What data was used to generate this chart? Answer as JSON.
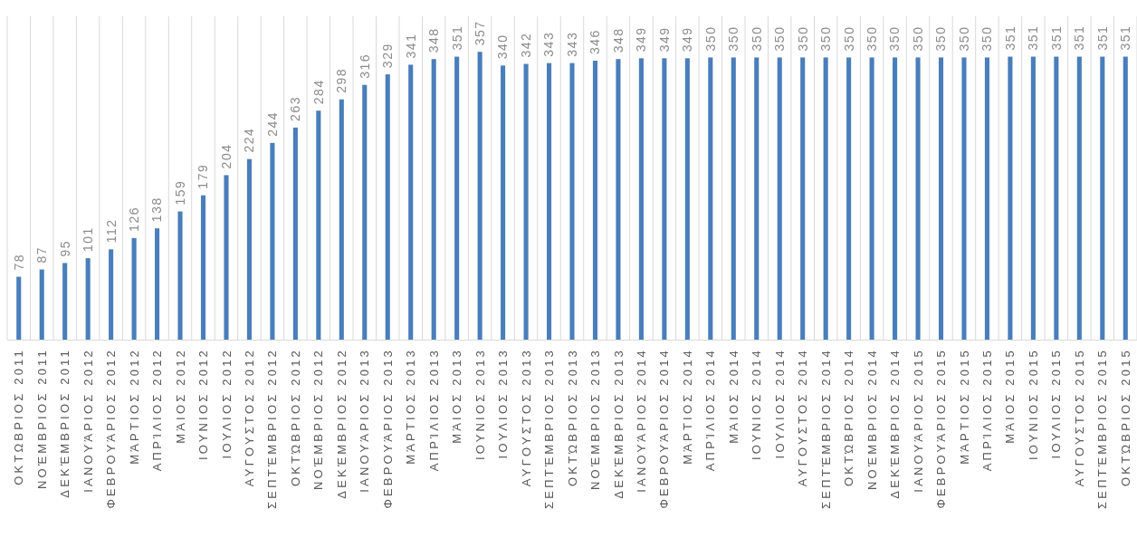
{
  "chart_data": {
    "type": "bar",
    "categories": [
      "ΟΚΤΩΒΡΙΟΣ 2011",
      "ΝΟΈΜΒΡΙΟΣ 2011",
      "ΔΕΚΈΜΒΡΙΟΣ 2011",
      "ΙΑΝΟΥΆΡΙΟΣ 2012",
      "ΦΕΒΡΟΥΆΡΙΟΣ 2012",
      "ΜΆΡΤΙΟΣ 2012",
      "ΑΠΡΊΛΙΟΣ 2012",
      "ΜΆΙΟΣ 2012",
      "ΙΟΥΝΙΟΣ 2012",
      "ΙΟΥΛΙΟΣ 2012",
      "ΑΥΓΟΥΣΤΟΣ 2012",
      "ΣΕΠΤΈΜΒΡΙΟΣ 2012",
      "ΟΚΤΏΒΡΙΟΣ 2012",
      "ΝΟΈΜΒΡΙΟΣ 2012",
      "ΔΕΚΈΜΒΡΙΟΣ 2012",
      "ΙΑΝΟΥΆΡΙΟΣ 2013",
      "ΦΕΒΡΟΥΆΡΙΟΣ 2013",
      "ΜΆΡΤΙΟΣ 2013",
      "ΑΠΡΊΛΙΟΣ 2013",
      "ΜΆΙΟΣ 2013",
      "ΙΟΥΝΙΟΣ 2013",
      "ΙΟΥΛΙΟΣ 2013",
      "ΑΥΓΟΥΣΤΟΣ 2013",
      "ΣΕΠΤΈΜΒΡΙΟΣ 2013",
      "ΟΚΤΏΒΡΙΟΣ 2013",
      "ΝΟΈΜΒΡΙΟΣ 2013",
      "ΔΕΚΈΜΒΡΙΟΣ 2013",
      "ΙΑΝΟΥΆΡΙΟΣ 2014",
      "ΦΕΒΡΟΥΆΡΙΟΣ 2014",
      "ΜΆΡΤΙΟΣ 2014",
      "ΑΠΡΊΛΙΟΣ 2014",
      "ΜΆΙΟΣ 2014",
      "ΙΟΥΝΙΟΣ 2014",
      "ΙΟΥΛΙΟΣ 2014",
      "ΑΥΓΟΥΣΤΟΣ 2014",
      "ΣΕΠΤΈΜΒΡΙΟΣ 2014",
      "ΟΚΤΏΒΡΙΟΣ 2014",
      "ΝΟΈΜΒΡΙΟΣ 2014",
      "ΔΕΚΈΜΒΡΙΟΣ 2014",
      "ΙΑΝΟΥΆΡΙΟΣ 2015",
      "ΦΕΒΡΟΥΆΡΙΟΣ 2015",
      "ΜΆΡΤΙΟΣ 2015",
      "ΑΠΡΊΛΙΟΣ 2015",
      "ΜΆΙΟΣ 2015",
      "ΙΟΥΝΙΟΣ 2015",
      "ΙΟΥΛΙΟΣ 2015",
      "ΑΥΓΟΥΣΤΟΣ 2015",
      "ΣΕΠΤΈΜΒΡΙΟΣ 2015",
      "ΟΚΤΏΒΡΙΟΣ 2015"
    ],
    "values": [
      78,
      87,
      95,
      101,
      112,
      126,
      138,
      159,
      179,
      204,
      224,
      244,
      263,
      284,
      298,
      316,
      329,
      341,
      348,
      351,
      357,
      340,
      342,
      343,
      343,
      346,
      348,
      349,
      349,
      349,
      350,
      350,
      350,
      350,
      350,
      350,
      350,
      350,
      350,
      350,
      350,
      350,
      350,
      351,
      351,
      351,
      351,
      351,
      351
    ],
    "color": "#4a7ebb",
    "data_labels": true,
    "grid": "x"
  }
}
